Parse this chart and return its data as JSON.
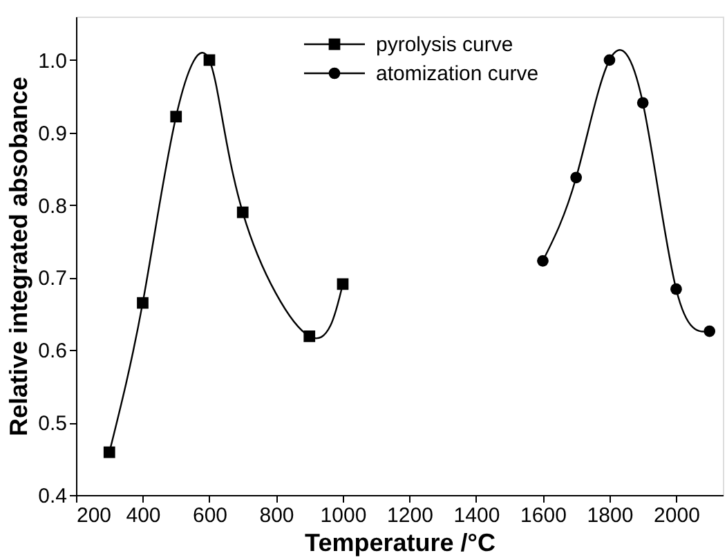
{
  "chart_data": {
    "type": "line",
    "xlabel": "Temperature /°C",
    "ylabel": "Relative integrated absobance",
    "xlim": [
      200,
      2140
    ],
    "xticks": [
      200,
      400,
      600,
      800,
      1000,
      1200,
      1400,
      1600,
      1800,
      2000
    ],
    "ylim": [
      0.4,
      1.06
    ],
    "yticks": [
      0.4,
      0.5,
      0.6,
      0.7,
      0.8,
      0.9,
      {
        "value": 1,
        "label": "1.0"
      }
    ],
    "grid": false,
    "legend": "top",
    "line_style": "solid",
    "series": [
      {
        "name": "pyrolysis curve",
        "color": "#000000",
        "marker": "square",
        "x": [
          300,
          400,
          500,
          600,
          700,
          900,
          1000
        ],
        "values": [
          0.459,
          0.665,
          0.922,
          1.0,
          0.79,
          0.619,
          0.691
        ]
      },
      {
        "name": "atomization curve",
        "color": "#000000",
        "marker": "circle",
        "x": [
          1600,
          1700,
          1800,
          1900,
          2000,
          2100
        ],
        "values": [
          0.723,
          0.838,
          1.0,
          0.941,
          0.684,
          0.626
        ]
      }
    ]
  }
}
